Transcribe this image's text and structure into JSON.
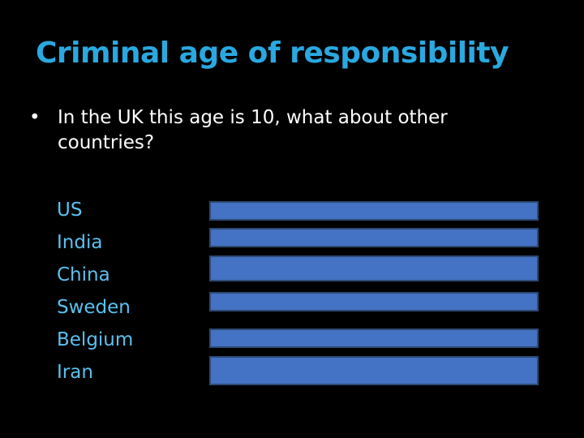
{
  "slide": {
    "title": "Criminal age of responsibility",
    "bullet_marker": "•",
    "bullet_text": "In the UK this age is 10, what about other countries?",
    "countries": [
      "US",
      "India",
      "China",
      "Sweden",
      "Belgium",
      "Iran"
    ]
  },
  "colors": {
    "background": "#000000",
    "title": "#2aa8e0",
    "body_text": "#ffffff",
    "country_text": "#5bc1ef",
    "answer_box_fill": "#4472c4",
    "answer_box_border": "#2e4a74"
  }
}
